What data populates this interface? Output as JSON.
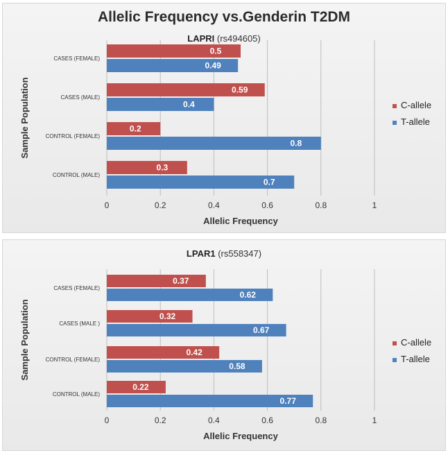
{
  "main_title": "Allelic Frequency vs.Genderin T2DM",
  "colors": {
    "c_allele": "#c0504d",
    "t_allele": "#4f81bd"
  },
  "chart_data": [
    {
      "type": "bar",
      "orientation": "horizontal",
      "title_gene": "LAPRI",
      "title_snp": "(rs494605)",
      "xlabel": "Allelic Frequency",
      "ylabel": "Sample Population",
      "xlim": [
        0,
        1
      ],
      "xticks": [
        "0",
        "0.2",
        "0.4",
        "0.6",
        "0.8",
        "1"
      ],
      "grid": true,
      "legend_position": "right",
      "categories": [
        "CASES (FEMALE)",
        "CASES (MALE)",
        "CONTROL (FEMALE)",
        "CONTROL (MALE)"
      ],
      "series": [
        {
          "name": "C-allele",
          "values": [
            0.5,
            0.59,
            0.2,
            0.3
          ],
          "labels": [
            "0.5",
            "0.59",
            "0.2",
            "0.3"
          ]
        },
        {
          "name": "T-allele",
          "values": [
            0.49,
            0.4,
            0.8,
            0.7
          ],
          "labels": [
            "0.49",
            "0.4",
            "0.8",
            "0.7"
          ]
        }
      ]
    },
    {
      "type": "bar",
      "orientation": "horizontal",
      "title_gene": "LPAR1",
      "title_snp": "(rs558347)",
      "xlabel": "Allelic Frequency",
      "ylabel": "Sample Population",
      "xlim": [
        0,
        1
      ],
      "xticks": [
        "0",
        "0.2",
        "0.4",
        "0.6",
        "0.8",
        "1"
      ],
      "grid": true,
      "legend_position": "right",
      "categories": [
        "CASES (FEMALE)",
        "CASES (MALE )",
        "CONTROL (FEMALE)",
        "CONTROL (MALE)"
      ],
      "series": [
        {
          "name": "C-allele",
          "values": [
            0.37,
            0.32,
            0.42,
            0.22
          ],
          "labels": [
            "0.37",
            "0.32",
            "0.42",
            "0.22"
          ]
        },
        {
          "name": "T-allele",
          "values": [
            0.62,
            0.67,
            0.58,
            0.77
          ],
          "labels": [
            "0.62",
            "0.67",
            "0.58",
            "0.77"
          ]
        }
      ]
    }
  ]
}
